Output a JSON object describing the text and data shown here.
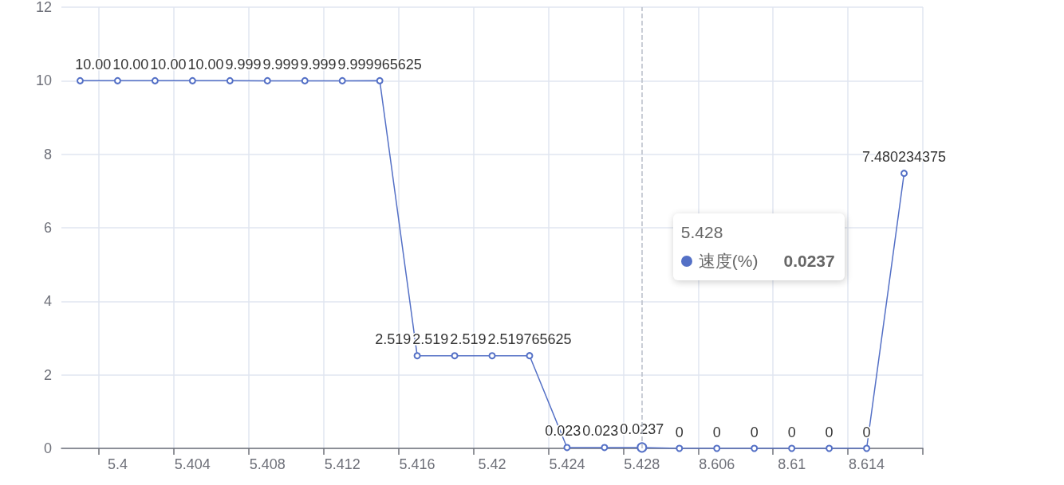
{
  "chart_data": {
    "type": "line",
    "categories": [
      null,
      "5.4",
      null,
      "5.404",
      null,
      "5.408",
      null,
      "5.412",
      null,
      "5.416",
      null,
      "5.42",
      null,
      "5.424",
      null,
      "5.428",
      null,
      "8.606",
      null,
      "8.61",
      null,
      "8.614",
      null
    ],
    "series": [
      {
        "name": "速度(%)",
        "color": "#5470c6",
        "values": [
          10,
          10,
          10,
          10,
          10,
          9.999,
          9.999,
          9.999,
          9.999965625,
          2.519,
          2.519,
          2.519,
          2.519765625,
          0.023,
          0.023,
          0.0237,
          0,
          0,
          0,
          0,
          0,
          0,
          7.480234375
        ],
        "value_labels": [
          null,
          "10.00",
          "10.00",
          "10.00",
          "10.00",
          "9.999",
          "9.999",
          "9.999",
          "9.999965625",
          "2.519",
          "2.519",
          "2.519",
          "2.519765625",
          "0.023",
          "0.023",
          "0.0237",
          "0",
          "0",
          "0",
          "0",
          "0",
          "0",
          "7.480234375"
        ]
      }
    ],
    "ylim": [
      0,
      12
    ],
    "yticks": [
      0,
      2,
      4,
      6,
      8,
      10,
      12
    ],
    "grid": true,
    "marker": "circle",
    "annotations": [
      "5.428",
      "0.0237"
    ]
  }
}
